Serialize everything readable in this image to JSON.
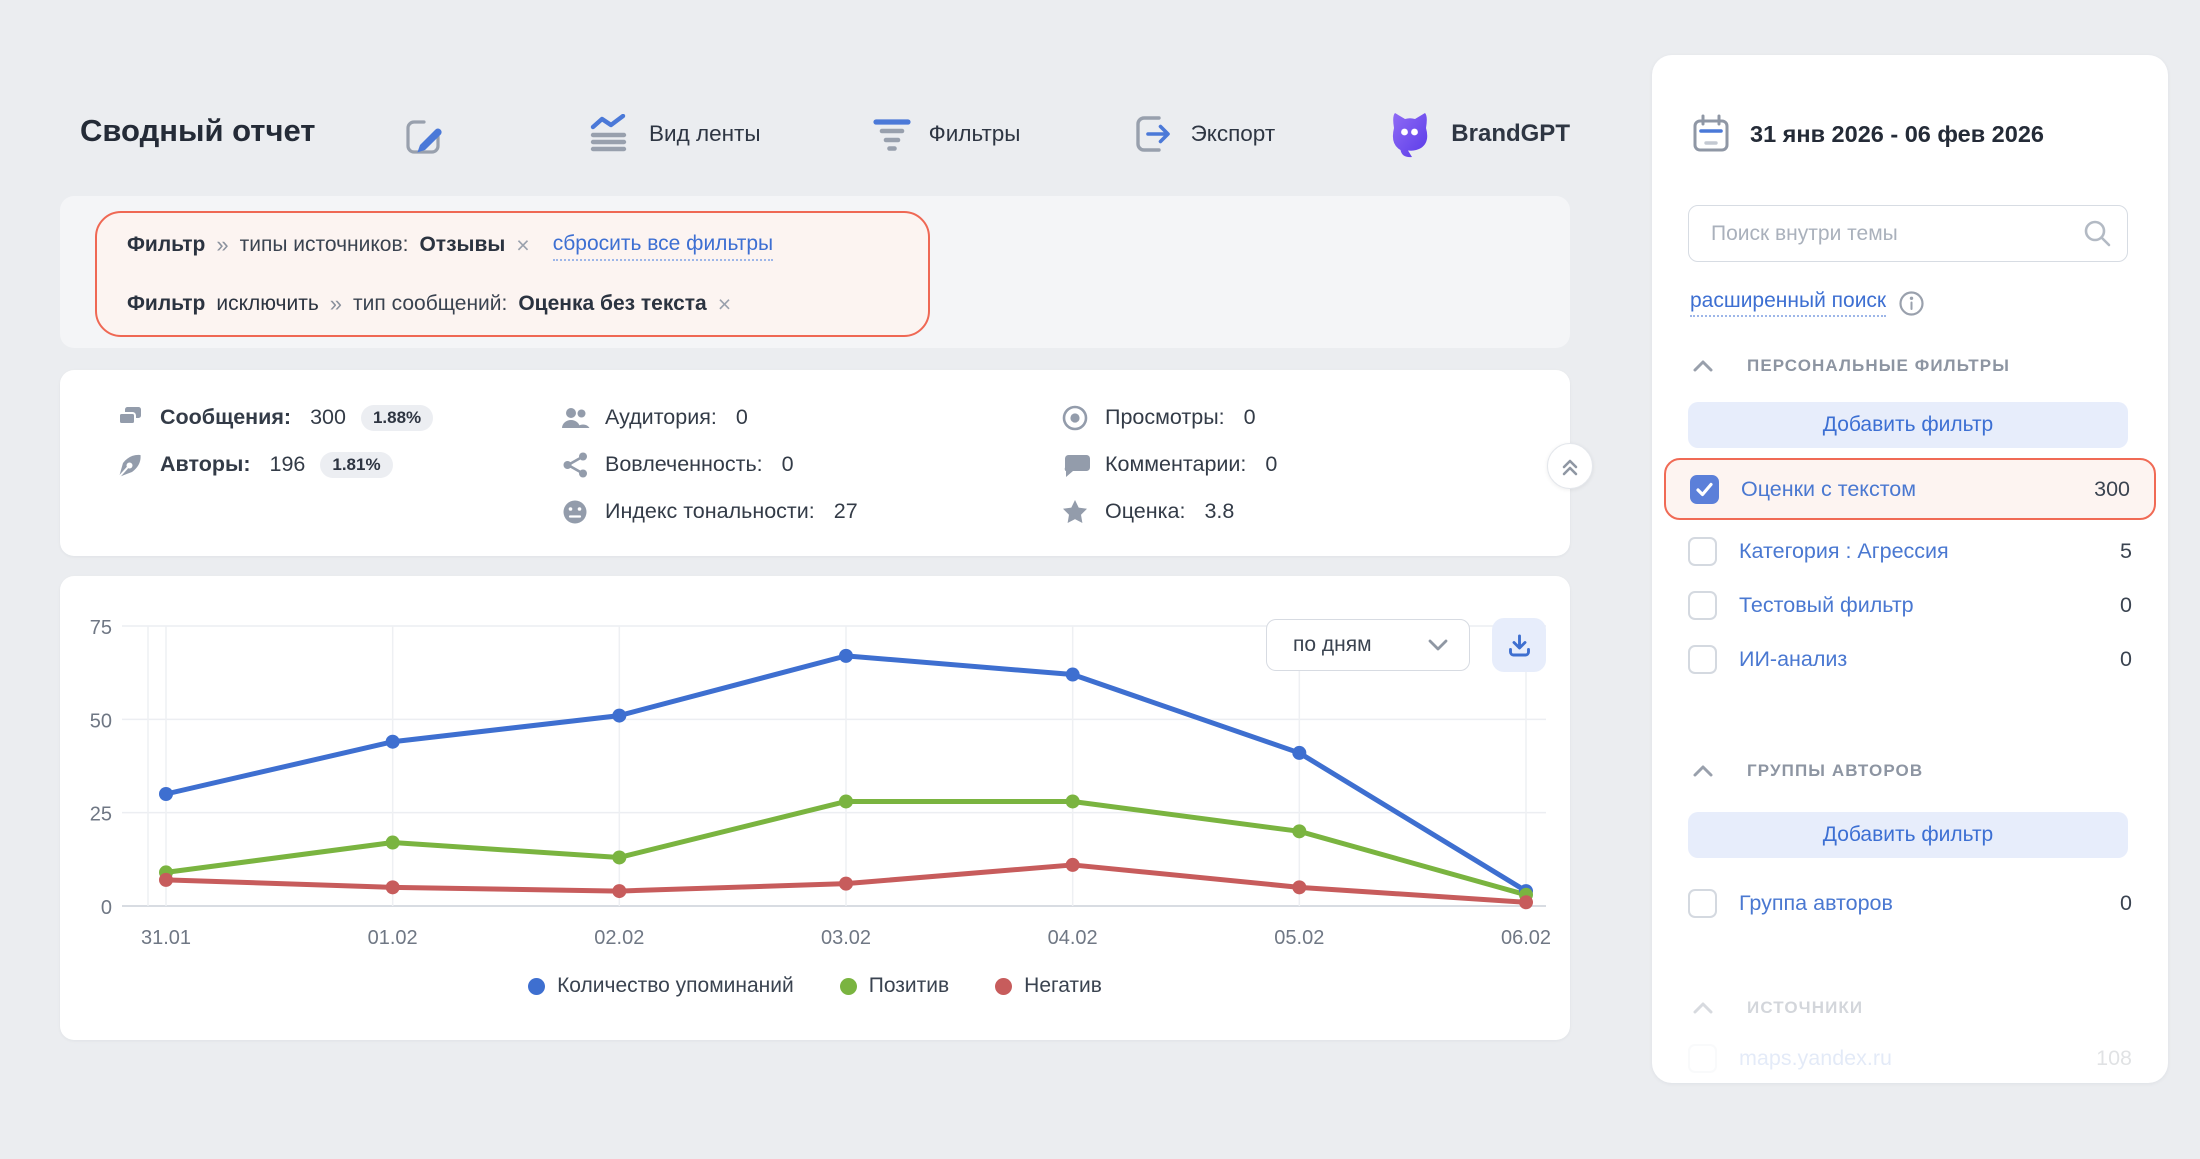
{
  "colors": {
    "accent_blue": "#3d6fd2",
    "highlight_coral": "#ef6854",
    "button_bg": "#e7edfb"
  },
  "header": {
    "title": "Сводный отчет",
    "menu": {
      "feed_view": "Вид ленты",
      "filters": "Фильтры",
      "export": "Экспорт",
      "brandgpt": "BrandGPT"
    }
  },
  "filter_bar": {
    "row1": {
      "label": "Фильтр",
      "arrow": "»",
      "field": "типы источников:",
      "value": "Отзывы",
      "remove": "×",
      "reset_link": "сбросить все фильтры"
    },
    "row2": {
      "label": "Фильтр",
      "mode": "исключить",
      "arrow": "»",
      "field": "тип сообщений:",
      "value": "Оценка без текста",
      "remove": "×"
    }
  },
  "stats": {
    "messages": {
      "label": "Сообщения:",
      "value": "300",
      "badge": "1.88%"
    },
    "authors": {
      "label": "Авторы:",
      "value": "196",
      "badge": "1.81%"
    },
    "audience": {
      "label": "Аудитория:",
      "value": "0"
    },
    "engagement": {
      "label": "Вовлеченность:",
      "value": "0"
    },
    "tonality": {
      "label": "Индекс тональности:",
      "value": "27"
    },
    "views": {
      "label": "Просмотры:",
      "value": "0"
    },
    "comments": {
      "label": "Комментарии:",
      "value": "0"
    },
    "rating": {
      "label": "Оценка:",
      "value": "3.8"
    }
  },
  "chart_controls": {
    "granularity": "по дням"
  },
  "chart_data": {
    "type": "line",
    "x": [
      "31.01",
      "01.02",
      "02.02",
      "03.02",
      "04.02",
      "05.02",
      "06.02"
    ],
    "series": [
      {
        "name": "Количество упоминаний",
        "color": "#3e6fd0",
        "values": [
          30,
          44,
          51,
          67,
          62,
          41,
          4
        ]
      },
      {
        "name": "Позитив",
        "color": "#7ab440",
        "values": [
          9,
          17,
          13,
          28,
          28,
          20,
          3
        ]
      },
      {
        "name": "Негатив",
        "color": "#c75c5c",
        "values": [
          7,
          5,
          4,
          6,
          11,
          5,
          1
        ]
      }
    ],
    "ylim": [
      0,
      75
    ],
    "yticks": [
      0,
      25,
      50,
      75
    ],
    "grid": true,
    "legend_position": "bottom",
    "title": "",
    "xlabel": "",
    "ylabel": ""
  },
  "sidebar": {
    "date_range": "31 янв 2026 - 06 фев 2026",
    "search_placeholder": "Поиск внутри темы",
    "advanced_search": "расширенный поиск",
    "personal_filters": {
      "title": "ПЕРСОНАЛЬНЫЕ ФИЛЬТРЫ",
      "add_button": "Добавить фильтр",
      "items": [
        {
          "label": "Оценки с текстом",
          "count": "300",
          "checked": true,
          "highlighted": true
        },
        {
          "label": "Категория : Агрессия",
          "count": "5",
          "checked": false
        },
        {
          "label": "Тестовый фильтр",
          "count": "0",
          "checked": false
        },
        {
          "label": "ИИ-анализ",
          "count": "0",
          "checked": false
        }
      ]
    },
    "author_groups": {
      "title": "ГРУППЫ АВТОРОВ",
      "add_button": "Добавить фильтр",
      "items": [
        {
          "label": "Группа авторов",
          "count": "0",
          "checked": false
        }
      ]
    },
    "sources": {
      "title": "ИСТОЧНИКИ",
      "items": [
        {
          "label": "maps.yandex.ru",
          "count": "108",
          "checked": false
        }
      ]
    }
  }
}
